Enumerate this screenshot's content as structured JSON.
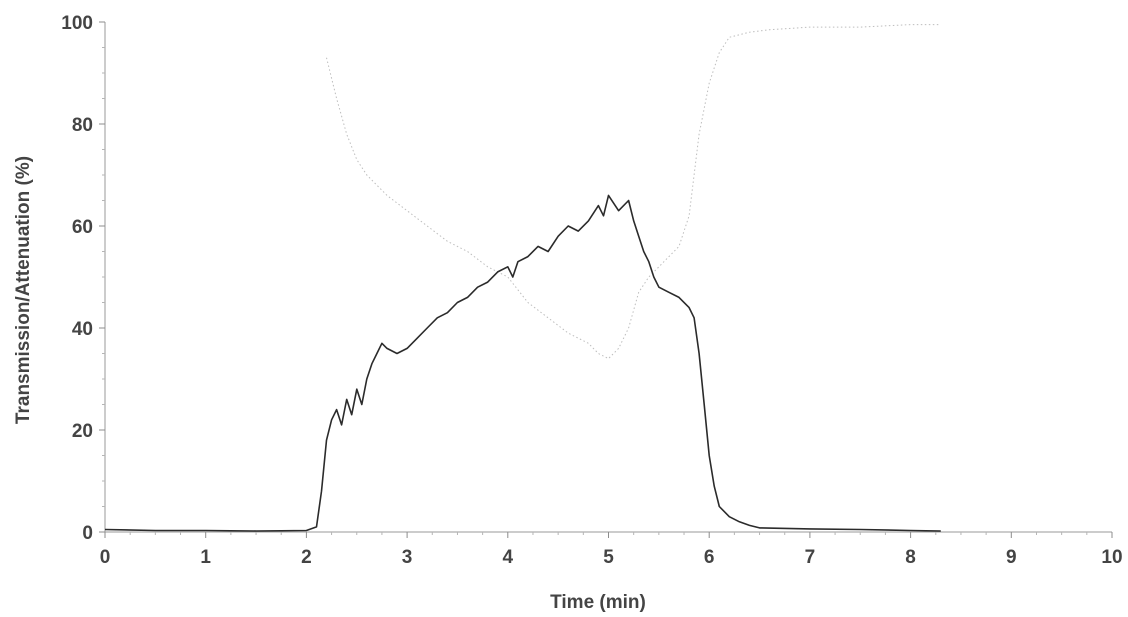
{
  "chart_data": {
    "type": "line",
    "xlabel": "Time (min)",
    "ylabel": "Transmission/Attenuation (%)",
    "xlim": [
      0,
      10
    ],
    "ylim": [
      0,
      100
    ],
    "x_ticks": [
      "0",
      "1",
      "2",
      "3",
      "4",
      "5",
      "6",
      "7",
      "8",
      "9",
      "10"
    ],
    "y_ticks": [
      "0",
      "20",
      "40",
      "60",
      "80",
      "100"
    ],
    "grid": false,
    "legend": "none",
    "colors": {
      "dark_series": "#2b2b2b",
      "light_series": "#bdbdbd",
      "axis": "#9a9a9a",
      "text": "#444444"
    },
    "series": [
      {
        "style": "solid-dark",
        "x": [
          0,
          0.5,
          1.0,
          1.5,
          2.0,
          2.1,
          2.15,
          2.2,
          2.25,
          2.3,
          2.35,
          2.4,
          2.45,
          2.5,
          2.55,
          2.6,
          2.65,
          2.7,
          2.75,
          2.8,
          2.9,
          3.0,
          3.1,
          3.2,
          3.3,
          3.4,
          3.5,
          3.6,
          3.7,
          3.8,
          3.9,
          4.0,
          4.05,
          4.1,
          4.2,
          4.3,
          4.4,
          4.5,
          4.6,
          4.7,
          4.8,
          4.9,
          4.95,
          5.0,
          5.1,
          5.2,
          5.25,
          5.3,
          5.35,
          5.4,
          5.45,
          5.5,
          5.6,
          5.7,
          5.8,
          5.85,
          5.9,
          5.95,
          6.0,
          6.05,
          6.1,
          6.2,
          6.3,
          6.4,
          6.5,
          7.0,
          7.5,
          8.0,
          8.3
        ],
        "y": [
          0.5,
          0.3,
          0.3,
          0.2,
          0.3,
          1,
          8,
          18,
          22,
          24,
          21,
          26,
          23,
          28,
          25,
          30,
          33,
          35,
          37,
          36,
          35,
          36,
          38,
          40,
          42,
          43,
          45,
          46,
          48,
          49,
          51,
          52,
          50,
          53,
          54,
          56,
          55,
          58,
          60,
          59,
          61,
          64,
          62,
          66,
          63,
          65,
          61,
          58,
          55,
          53,
          50,
          48,
          47,
          46,
          44,
          42,
          35,
          25,
          15,
          9,
          5,
          3,
          2,
          1.3,
          0.8,
          0.6,
          0.5,
          0.3,
          0.2
        ]
      },
      {
        "style": "dotted-light",
        "x": [
          2.2,
          2.3,
          2.4,
          2.5,
          2.6,
          2.8,
          3.0,
          3.2,
          3.4,
          3.6,
          3.8,
          4.0,
          4.2,
          4.4,
          4.6,
          4.8,
          4.9,
          5.0,
          5.1,
          5.2,
          5.3,
          5.4,
          5.5,
          5.6,
          5.7,
          5.8,
          5.85,
          5.9,
          6.0,
          6.1,
          6.2,
          6.4,
          6.6,
          7.0,
          7.5,
          8.0,
          8.3
        ],
        "y": [
          93,
          85,
          78,
          73,
          70,
          66,
          63,
          60,
          57,
          55,
          52,
          50,
          45,
          42,
          39,
          37,
          35,
          34,
          36,
          40,
          47,
          50,
          52,
          54,
          56,
          62,
          70,
          78,
          88,
          94,
          97,
          98,
          98.5,
          99,
          99,
          99.5,
          99.5
        ]
      }
    ]
  }
}
